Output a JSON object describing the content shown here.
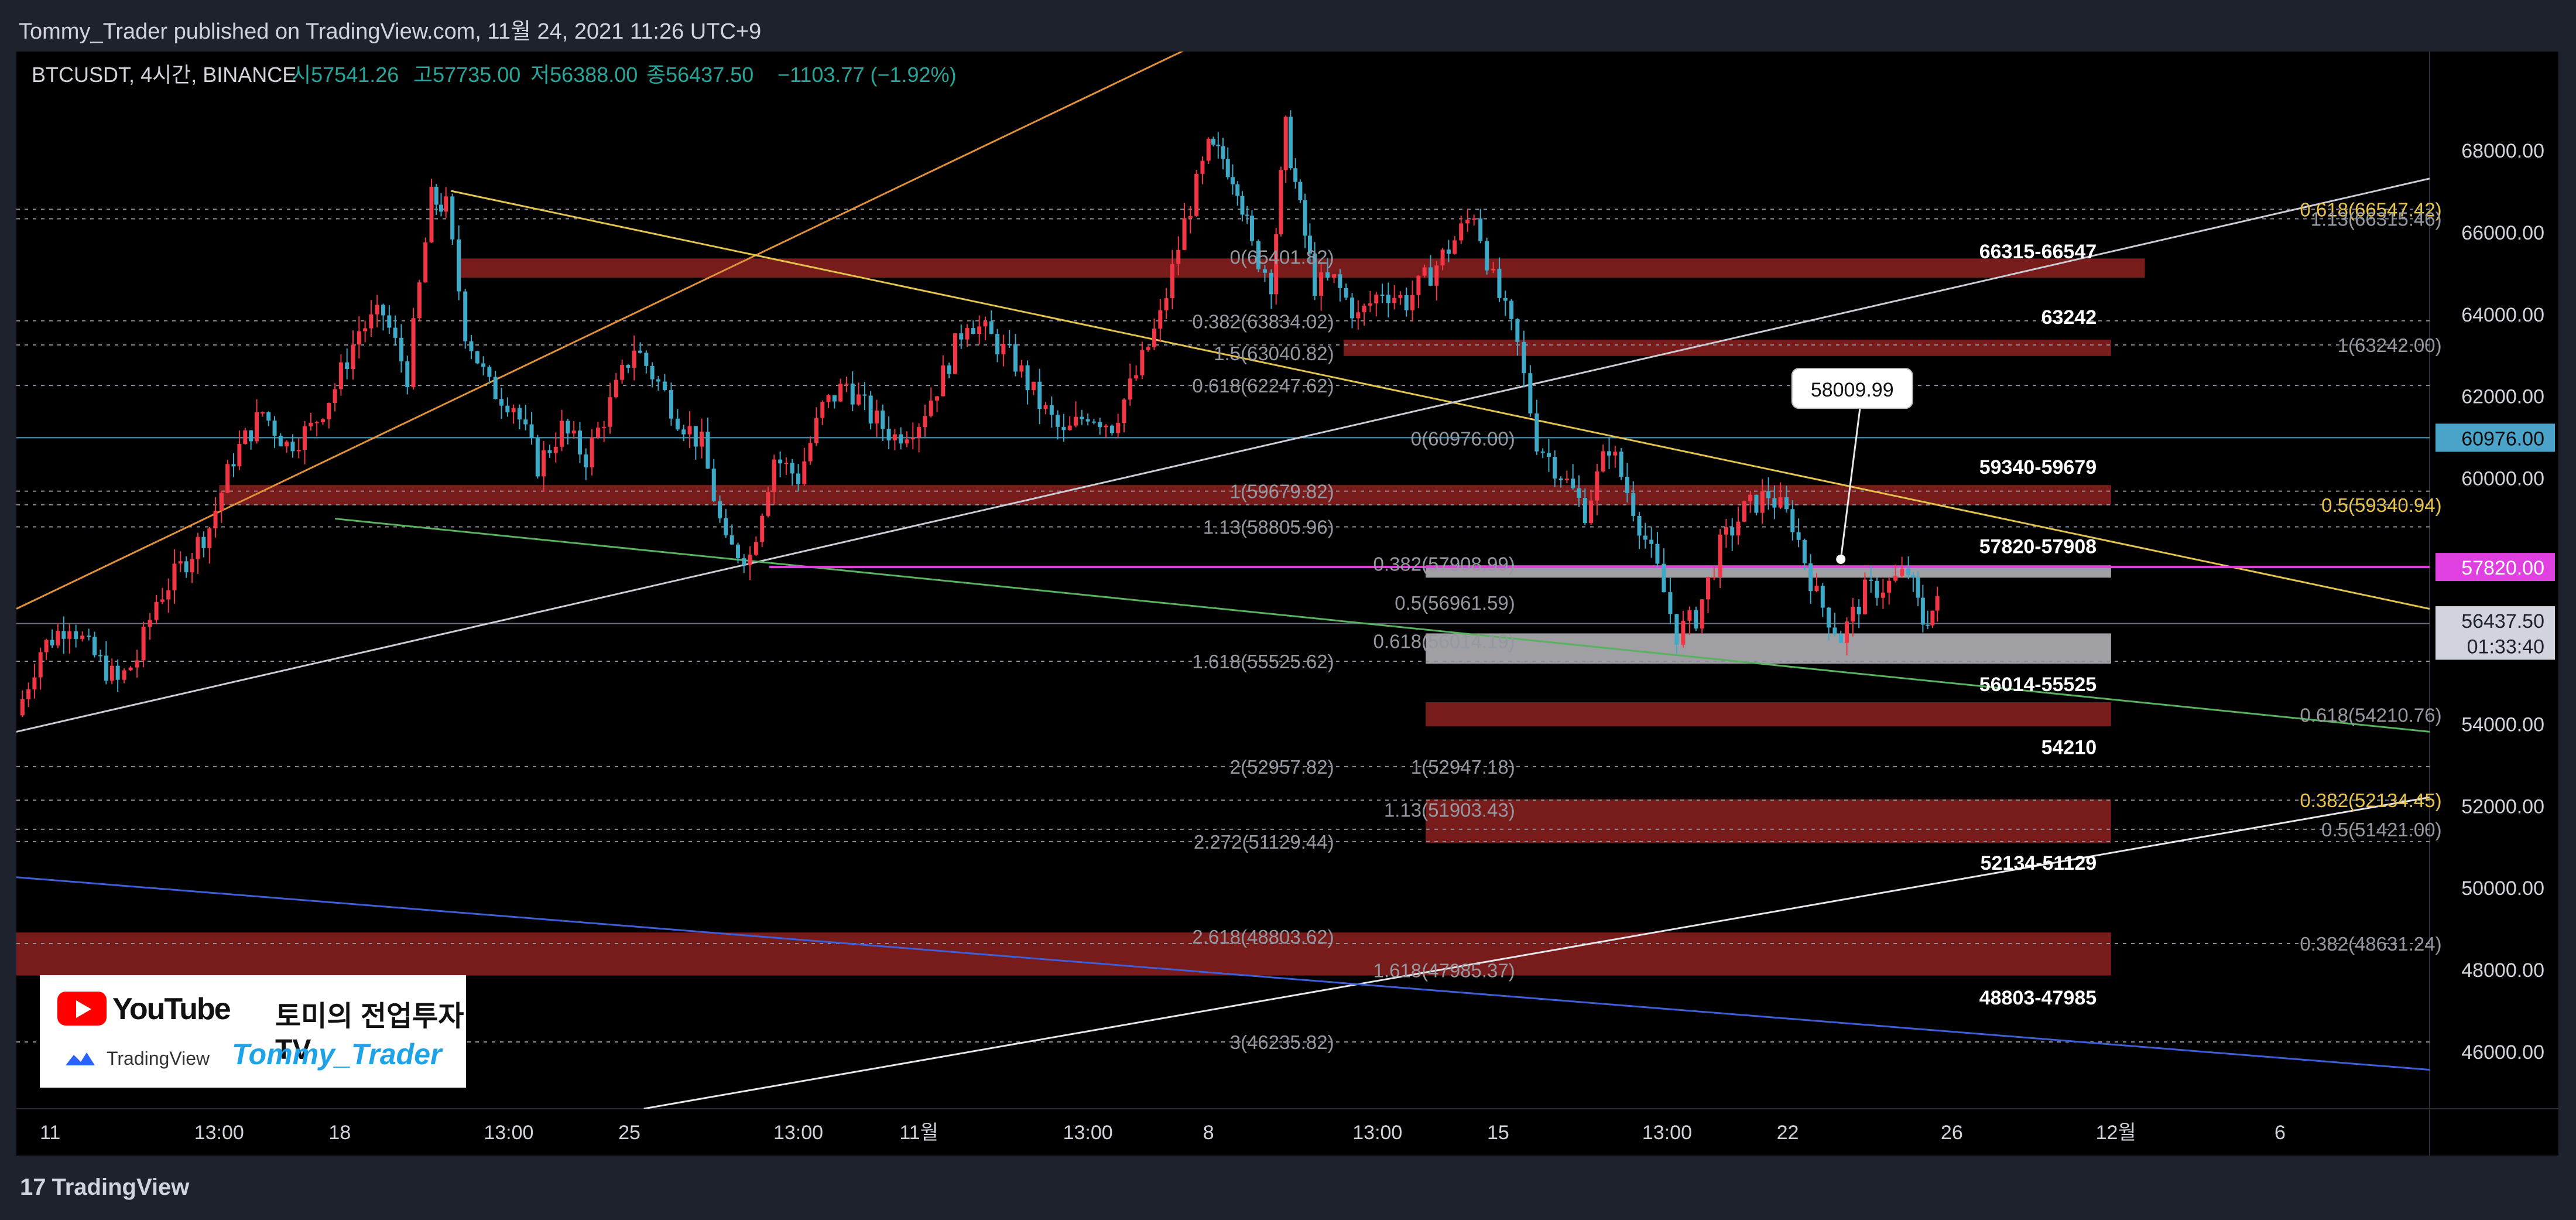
{
  "header": {
    "published": "Tommy_Trader published on TradingView.com, 11월 24, 2021 11:26 UTC+9"
  },
  "footer": {
    "brand": "TradingView"
  },
  "branding": {
    "youtube_label": "YouTube",
    "channel_korean": "토미의 전업투자TV",
    "tv_label": "TradingView",
    "channel_name": "Tommy_Trader"
  },
  "chart_data": {
    "type": "candlestick",
    "symbol_line": "BTCUSDT, 4시간, BINANCE",
    "ohlc_text": {
      "open": "시57541.26",
      "high": "고57735.00",
      "low": "저56388.00",
      "close": "종56437.50",
      "change": "−1103.77 (−1.92%)"
    },
    "ylim": [
      44600,
      70400
    ],
    "xlim": [
      0,
      1000
    ],
    "price_ticks": [
      "46000.00",
      "48000.00",
      "50000.00",
      "52000.00",
      "54000.00",
      "56000.00",
      "58000.00",
      "60000.00",
      "62000.00",
      "64000.00",
      "66000.00",
      "68000.00"
    ],
    "x_ticks": [
      {
        "label": "11",
        "x": 14
      },
      {
        "label": "13:00",
        "x": 84
      },
      {
        "label": "18",
        "x": 134
      },
      {
        "label": "13:00",
        "x": 204
      },
      {
        "label": "25",
        "x": 254
      },
      {
        "label": "13:00",
        "x": 324
      },
      {
        "label": "11월",
        "x": 374
      },
      {
        "label": "13:00",
        "x": 444
      },
      {
        "label": "8",
        "x": 494
      },
      {
        "label": "13:00",
        "x": 564
      },
      {
        "label": "15",
        "x": 614
      },
      {
        "label": "13:00",
        "x": 684
      },
      {
        "label": "22",
        "x": 734
      },
      {
        "label": "26",
        "x": 802
      },
      {
        "label": "12월",
        "x": 870
      },
      {
        "label": "6",
        "x": 938
      }
    ],
    "price_path": [
      [
        0,
        54200
      ],
      [
        10,
        55800
      ],
      [
        22,
        56500
      ],
      [
        30,
        55800
      ],
      [
        42,
        55000
      ],
      [
        50,
        55600
      ],
      [
        58,
        57000
      ],
      [
        68,
        57800
      ],
      [
        80,
        58800
      ],
      [
        90,
        60500
      ],
      [
        102,
        61600
      ],
      [
        112,
        60800
      ],
      [
        122,
        61200
      ],
      [
        132,
        62200
      ],
      [
        142,
        63600
      ],
      [
        152,
        64000
      ],
      [
        162,
        62500
      ],
      [
        172,
        66800
      ],
      [
        178,
        66600
      ],
      [
        186,
        63600
      ],
      [
        196,
        62200
      ],
      [
        206,
        61800
      ],
      [
        216,
        60300
      ],
      [
        226,
        61200
      ],
      [
        236,
        60500
      ],
      [
        246,
        61800
      ],
      [
        256,
        63200
      ],
      [
        266,
        62300
      ],
      [
        274,
        61500
      ],
      [
        284,
        60800
      ],
      [
        294,
        58300
      ],
      [
        304,
        58100
      ],
      [
        314,
        60500
      ],
      [
        324,
        60000
      ],
      [
        334,
        61700
      ],
      [
        344,
        62300
      ],
      [
        354,
        61500
      ],
      [
        364,
        61000
      ],
      [
        374,
        61400
      ],
      [
        384,
        62500
      ],
      [
        394,
        63900
      ],
      [
        404,
        63400
      ],
      [
        414,
        62800
      ],
      [
        424,
        61800
      ],
      [
        434,
        61000
      ],
      [
        444,
        61600
      ],
      [
        454,
        61300
      ],
      [
        464,
        62500
      ],
      [
        474,
        63900
      ],
      [
        484,
        66200
      ],
      [
        494,
        68000
      ],
      [
        500,
        67800
      ],
      [
        506,
        67200
      ],
      [
        512,
        65600
      ],
      [
        520,
        64800
      ],
      [
        526,
        68500
      ],
      [
        532,
        66500
      ],
      [
        538,
        64700
      ],
      [
        546,
        64800
      ],
      [
        556,
        63900
      ],
      [
        566,
        64600
      ],
      [
        576,
        64300
      ],
      [
        586,
        65000
      ],
      [
        596,
        65800
      ],
      [
        604,
        66500
      ],
      [
        612,
        64800
      ],
      [
        622,
        63200
      ],
      [
        630,
        60900
      ],
      [
        640,
        60100
      ],
      [
        650,
        59200
      ],
      [
        660,
        60800
      ],
      [
        670,
        59300
      ],
      [
        680,
        57700
      ],
      [
        688,
        56200
      ],
      [
        696,
        56600
      ],
      [
        706,
        58300
      ],
      [
        716,
        59200
      ],
      [
        726,
        59600
      ],
      [
        736,
        58900
      ],
      [
        746,
        57100
      ],
      [
        756,
        56100
      ],
      [
        766,
        57200
      ],
      [
        776,
        57400
      ],
      [
        784,
        57700
      ],
      [
        790,
        56500
      ],
      [
        796,
        56900
      ]
    ],
    "zones": [
      {
        "label": "66315-66547",
        "low": 64880,
        "high": 65350,
        "x1": 184,
        "x2": 882,
        "label_x": 862,
        "label_price": 65540,
        "color": "red"
      },
      {
        "label": "63242",
        "low": 62970,
        "high": 63370,
        "x1": 550,
        "x2": 868,
        "label_x": 862,
        "label_price": 63940,
        "color": "red"
      },
      {
        "label": "59340-59679",
        "low": 59330,
        "high": 59820,
        "x1": 84,
        "x2": 868,
        "label_x": 862,
        "label_price": 60280,
        "color": "red"
      },
      {
        "label": "57820-57908",
        "low": 57560,
        "high": 57860,
        "x1": 584,
        "x2": 868,
        "label_x": 862,
        "label_price": 58340,
        "color": "gray"
      },
      {
        "label": "56014-55525",
        "low": 55460,
        "high": 56200,
        "x1": 584,
        "x2": 868,
        "label_x": 862,
        "label_price": 54980,
        "color": "gray"
      },
      {
        "label": "54210",
        "low": 53930,
        "high": 54520,
        "x1": 584,
        "x2": 868,
        "label_x": 862,
        "label_price": 53440,
        "color": "red"
      },
      {
        "label": "52134-51129",
        "low": 51080,
        "high": 52150,
        "x1": 584,
        "x2": 868,
        "label_x": 862,
        "label_price": 50620,
        "color": "red"
      },
      {
        "label": "48803-47985",
        "low": 47850,
        "high": 48900,
        "x1": 0,
        "x2": 868,
        "label_x": 862,
        "label_price": 47330,
        "color": "red"
      }
    ],
    "fib_labels": [
      {
        "text": "0(65401.82)",
        "x": 546,
        "price": 65390,
        "color": "#9598a1"
      },
      {
        "text": "0.382(63834.02)",
        "x": 546,
        "price": 63820,
        "color": "#9598a1"
      },
      {
        "text": "1.5(63040.82)",
        "x": 546,
        "price": 63040,
        "color": "#9598a1"
      },
      {
        "text": "0.618(62247.62)",
        "x": 546,
        "price": 62250,
        "color": "#9598a1"
      },
      {
        "text": "0(60976.00)",
        "x": 621,
        "price": 60960,
        "color": "#9598a1"
      },
      {
        "text": "1(59679.82)",
        "x": 546,
        "price": 59670,
        "color": "#9598a1"
      },
      {
        "text": "1.13(58805.96)",
        "x": 546,
        "price": 58800,
        "color": "#9598a1"
      },
      {
        "text": "0.382(57908.99)",
        "x": 621,
        "price": 57900,
        "color": "#9598a1"
      },
      {
        "text": "0.5(56961.59)",
        "x": 621,
        "price": 56950,
        "color": "#9598a1"
      },
      {
        "text": "0.618(56014.19)",
        "x": 621,
        "price": 56010,
        "color": "#9598a1"
      },
      {
        "text": "1.618(55525.62)",
        "x": 546,
        "price": 55520,
        "color": "#9598a1"
      },
      {
        "text": "2(52957.82)",
        "x": 546,
        "price": 52950,
        "color": "#9598a1"
      },
      {
        "text": "1(52947.18)",
        "x": 621,
        "price": 52950,
        "color": "#9598a1"
      },
      {
        "text": "1.13(51903.43)",
        "x": 621,
        "price": 51900,
        "color": "#9598a1"
      },
      {
        "text": "2.272(51129.44)",
        "x": 546,
        "price": 51120,
        "color": "#9598a1"
      },
      {
        "text": "2.618(48803.62)",
        "x": 546,
        "price": 48800,
        "color": "#9598a1"
      },
      {
        "text": "1.618(47985.37)",
        "x": 621,
        "price": 47980,
        "color": "#9598a1"
      },
      {
        "text": "3(46235.82)",
        "x": 546,
        "price": 46230,
        "color": "#9598a1"
      },
      {
        "text": "0.618(66547.42)",
        "x": 1005,
        "price": 66550,
        "color": "#e8c34a"
      },
      {
        "text": "1.13(66315.46)",
        "x": 1005,
        "price": 66320,
        "color": "#9598a1"
      },
      {
        "text": "1(63242.00)",
        "x": 1005,
        "price": 63240,
        "color": "#9598a1"
      },
      {
        "text": "0.5(59340.94)",
        "x": 1005,
        "price": 59340,
        "color": "#e8c34a"
      },
      {
        "text": "0.618(54210.76)",
        "x": 1005,
        "price": 54210,
        "color": "#9598a1"
      },
      {
        "text": "0.382(52134.45)",
        "x": 1005,
        "price": 52130,
        "color": "#e8c34a"
      },
      {
        "text": "0.5(51421.00)",
        "x": 1005,
        "price": 51420,
        "color": "#9598a1"
      },
      {
        "text": "0.382(48631.24)",
        "x": 1005,
        "price": 48630,
        "color": "#9598a1"
      }
    ],
    "dotted_levels": [
      66550,
      66320,
      63830,
      63240,
      62250,
      59670,
      59340,
      58800,
      55520,
      52950,
      52130,
      51420,
      51120,
      48630,
      46230
    ],
    "solid_levels": [
      {
        "price": 60976,
        "color": "#4aa3c8"
      },
      {
        "price": 56440,
        "color": "#6d7180"
      }
    ],
    "lines": [
      {
        "name": "orange",
        "color": "#e0913a",
        "p1": [
          0,
          56800
        ],
        "p2": [
          490,
          70600
        ]
      },
      {
        "name": "yellow",
        "color": "#e2c34e",
        "p1": [
          180,
          67000
        ],
        "p2": [
          1000,
          56800
        ]
      },
      {
        "name": "white-upper",
        "color": "#c9ccd4",
        "p1": [
          0,
          53800
        ],
        "p2": [
          1000,
          67300
        ]
      },
      {
        "name": "white-lower",
        "color": "#e4e6eb",
        "p1": [
          260,
          44600
        ],
        "p2": [
          1000,
          52200
        ]
      },
      {
        "name": "green",
        "color": "#58b25f",
        "p1": [
          132,
          59000
        ],
        "p2": [
          1000,
          53800
        ]
      },
      {
        "name": "blue",
        "color": "#3f5fd8",
        "p1": [
          0,
          50250
        ],
        "p2": [
          1000,
          45550
        ]
      },
      {
        "name": "magenta",
        "color": "#e040e0",
        "p1": [
          312,
          57820
        ],
        "p2": [
          1000,
          57820
        ]
      }
    ],
    "callout": {
      "text": "58009.99",
      "x": 760,
      "price": 62150,
      "point_price": 58010
    },
    "price_badges": [
      {
        "text": "60976.00",
        "price": 60976,
        "bg": "#4aa3c8",
        "fg": "#0a0a0a"
      },
      {
        "text": "57820.00",
        "price": 57820,
        "bg": "#e040e0",
        "fg": "#ffffff"
      },
      {
        "text": "56437.50",
        "price": 56520,
        "bg": "#d1d4dc",
        "fg": "#1e222d"
      },
      {
        "text": "01:33:40",
        "price": 55900,
        "bg": "#d1d4dc",
        "fg": "#1e222d"
      }
    ]
  }
}
